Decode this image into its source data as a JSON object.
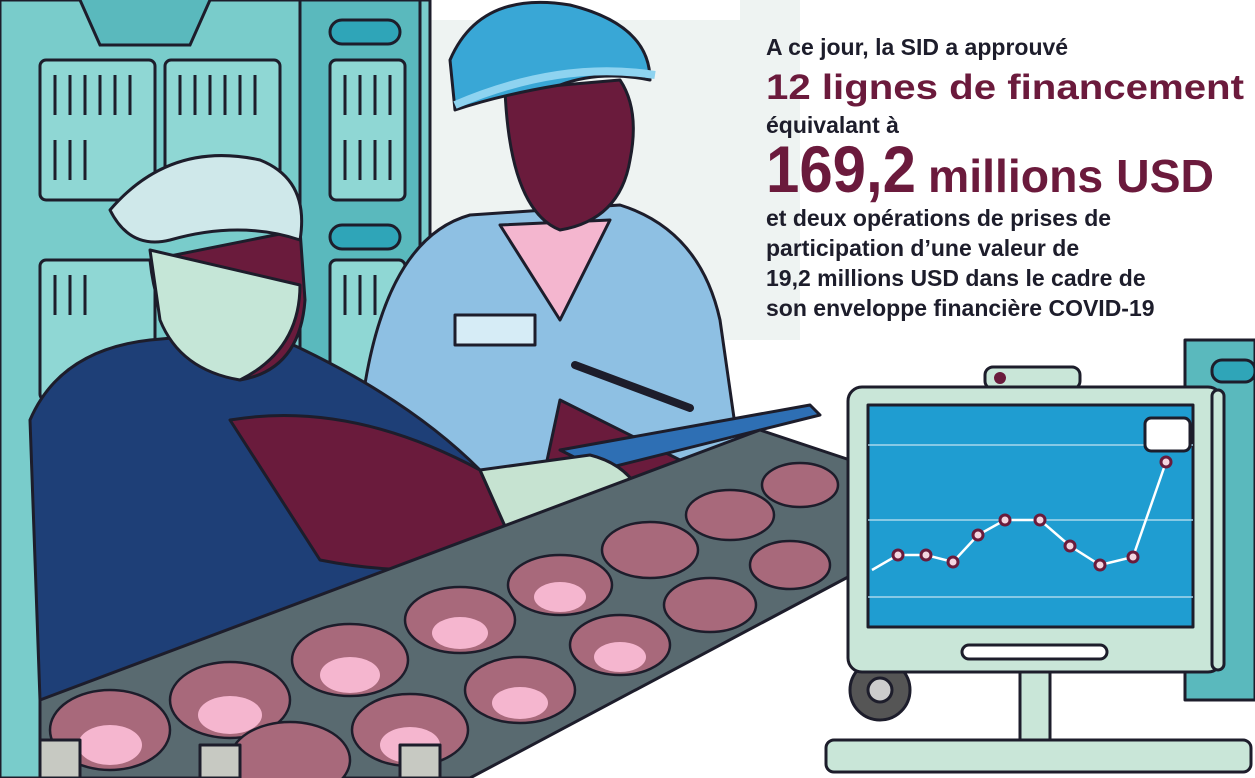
{
  "headline": {
    "intro": "A ce jour, la SID a approuvé",
    "highlight": "12 lignes de financement",
    "line2": "équivalant à",
    "amount": "169,2",
    "amount_unit": "millions USD",
    "details": [
      "et deux opérations de prises de",
      "participation d’une valeur de",
      "19,2 millions USD dans le cadre de",
      "son enveloppe financière COVID-19"
    ]
  }
}
